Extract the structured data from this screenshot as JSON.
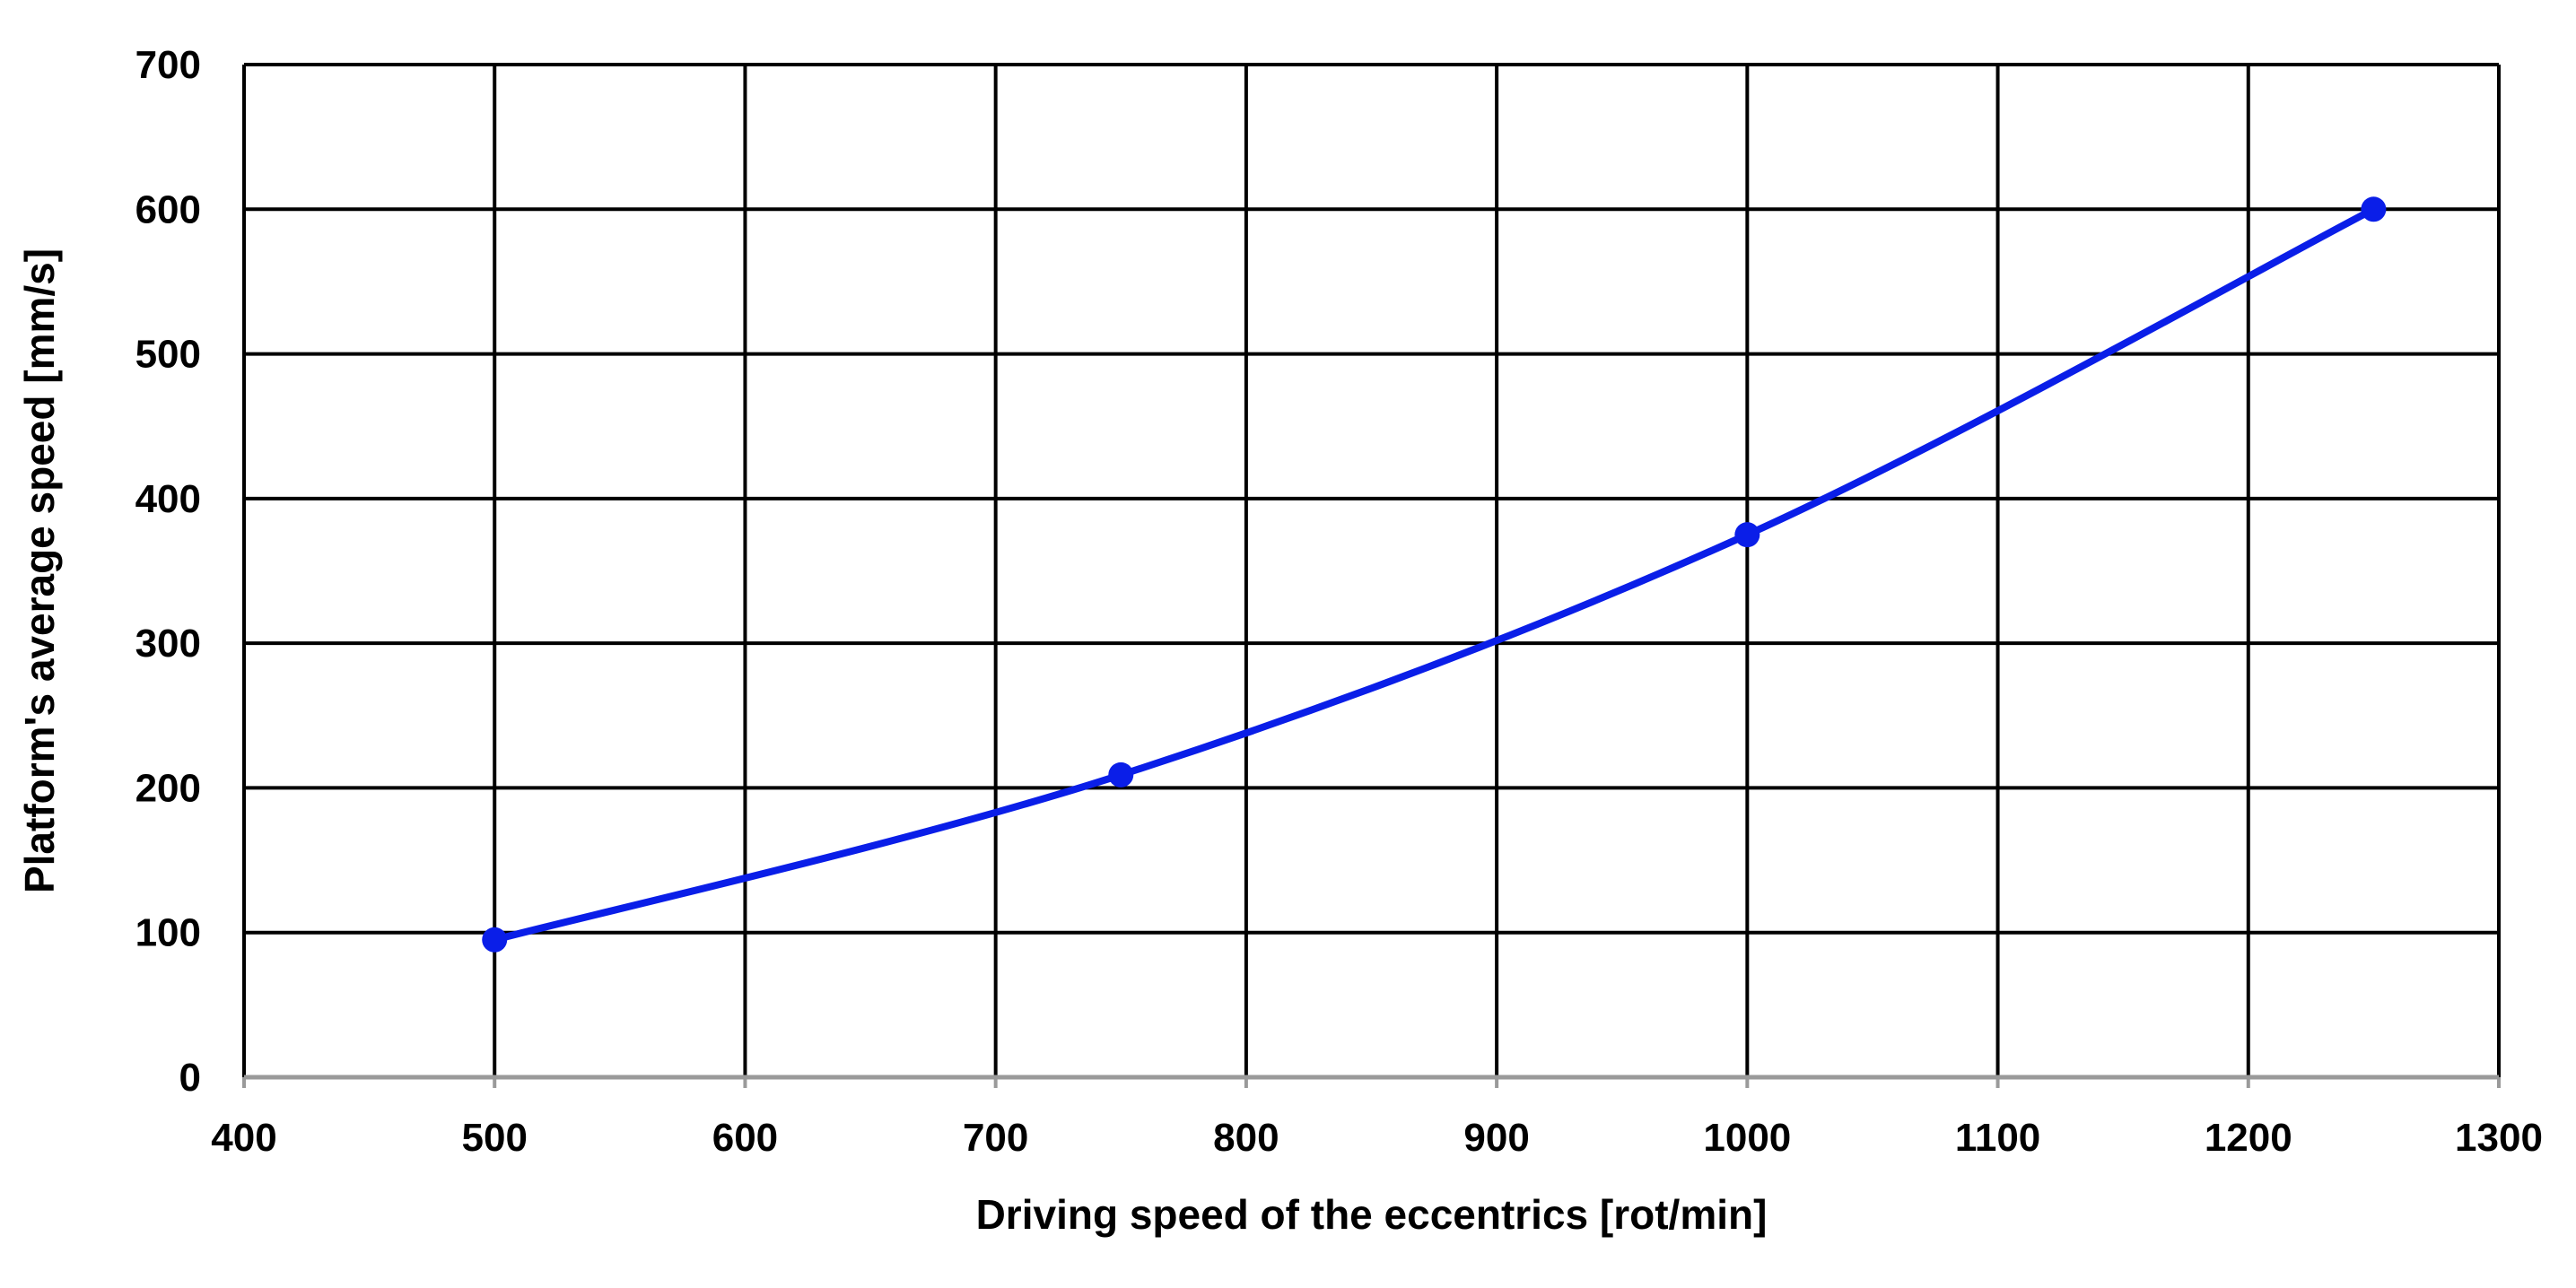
{
  "chart_data": {
    "type": "line",
    "title": "",
    "xlabel": "Driving speed of the eccentrics [rot/min]",
    "ylabel": "Platform's average speed [mm/s]",
    "xlim": [
      400,
      1300
    ],
    "ylim": [
      0,
      700
    ],
    "xticks": [
      400,
      500,
      600,
      700,
      800,
      900,
      1000,
      1100,
      1200,
      1300
    ],
    "yticks": [
      0,
      100,
      200,
      300,
      400,
      500,
      600,
      700
    ],
    "grid": true,
    "legend": "none",
    "series": [
      {
        "color": "#0a1ee8",
        "smooth": true,
        "markers": true,
        "x": [
          500,
          750,
          1000,
          1250
        ],
        "y": [
          95,
          209,
          375,
          600
        ]
      }
    ]
  }
}
